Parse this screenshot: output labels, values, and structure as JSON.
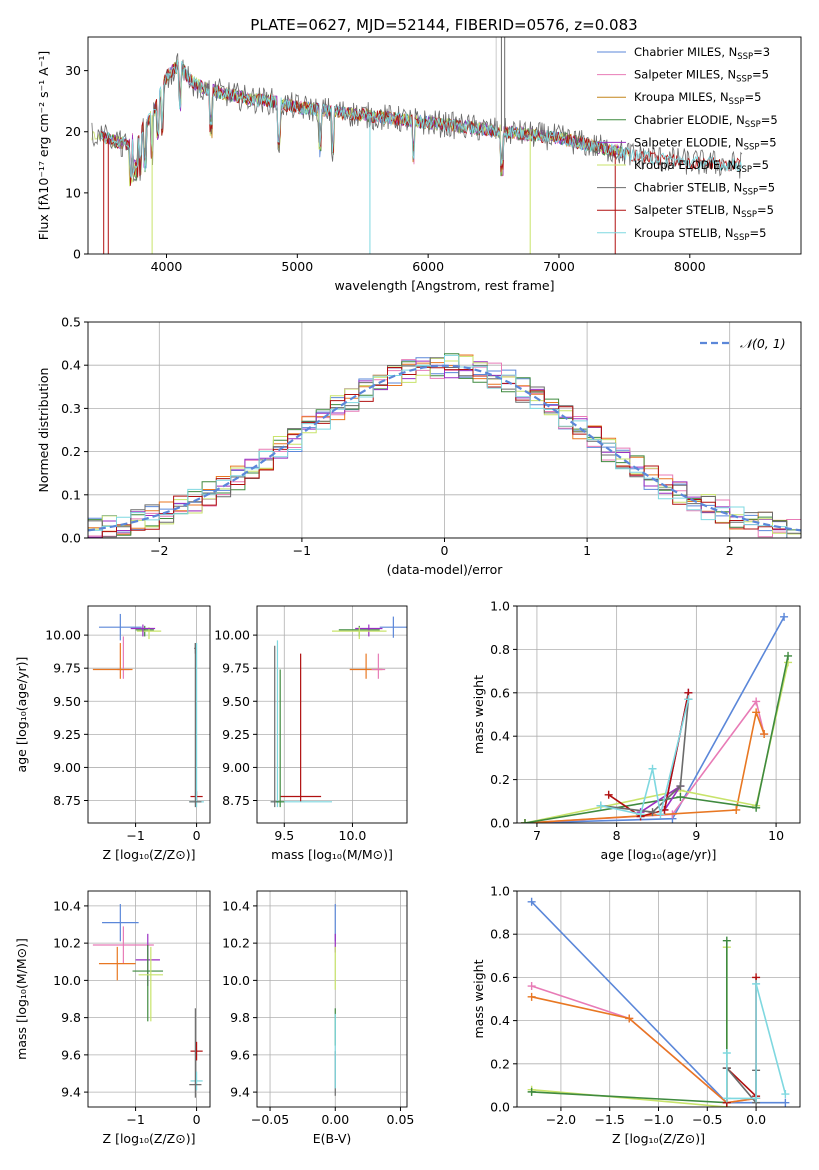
{
  "figure": {
    "title": "PLATE=0627, MJD=52144, FIBERID=0576, z=0.083"
  },
  "colors": {
    "Chabrier MILES": "#5b87d9",
    "Salpeter MILES": "#e87bb6",
    "Kroupa MILES": "#c4851c",
    "Chabrier ELODIE": "#3f8a3f",
    "Salpeter ELODIE": "#9a2fc2",
    "Kroupa ELODIE": "#c8e36a",
    "Chabrier STELIB": "#6b6b6b",
    "Salpeter STELIB": "#b01010",
    "Kroupa STELIB": "#7fd8e0",
    "orange": "#e87722"
  },
  "chart_data": [
    {
      "id": "spectrum",
      "type": "line",
      "xlabel": "wavelength [Angstrom, rest frame]",
      "ylabel": "Flux [fλ10⁻¹⁷ erg cm⁻² s⁻¹ A⁻¹]",
      "xlim": [
        3400,
        8850
      ],
      "ylim": [
        0,
        35.5
      ],
      "xticks": [
        4000,
        5000,
        6000,
        7000,
        8000
      ],
      "yticks": [
        0,
        10,
        20,
        30
      ],
      "legend_position": "top-right",
      "legend": [
        {
          "name": "Chabrier MILES",
          "label": "Chabrier MILES, N",
          "sub": "SSP",
          "suffix": "=3"
        },
        {
          "name": "Salpeter MILES",
          "label": "Salpeter MILES, N",
          "sub": "SSP",
          "suffix": "=5"
        },
        {
          "name": "Kroupa MILES",
          "label": "Kroupa MILES, N",
          "sub": "SSP",
          "suffix": "=5"
        },
        {
          "name": "Chabrier ELODIE",
          "label": "Chabrier ELODIE, N",
          "sub": "SSP",
          "suffix": "=5"
        },
        {
          "name": "Salpeter ELODIE",
          "label": "Salpeter ELODIE, N",
          "sub": "SSP",
          "suffix": "=5"
        },
        {
          "name": "Kroupa ELODIE",
          "label": "Kroupa ELODIE, N",
          "sub": "SSP",
          "suffix": "=5"
        },
        {
          "name": "Chabrier STELIB",
          "label": "Chabrier STELIB, N",
          "sub": "SSP",
          "suffix": "=5"
        },
        {
          "name": "Salpeter STELIB",
          "label": "Salpeter STELIB, N",
          "sub": "SSP",
          "suffix": "=5"
        },
        {
          "name": "Kroupa STELIB",
          "label": "Kroupa STELIB, N",
          "sub": "SSP",
          "suffix": "=5"
        }
      ],
      "continuum": [
        [
          3500,
          19.5
        ],
        [
          3600,
          18.5
        ],
        [
          3700,
          18
        ],
        [
          3800,
          20
        ],
        [
          3900,
          23
        ],
        [
          4000,
          29
        ],
        [
          4100,
          31
        ],
        [
          4200,
          28
        ],
        [
          4300,
          27
        ],
        [
          4400,
          26.5
        ],
        [
          4500,
          26
        ],
        [
          4600,
          25.5
        ],
        [
          4700,
          25.2
        ],
        [
          4800,
          25
        ],
        [
          4900,
          24.5
        ],
        [
          5000,
          24
        ],
        [
          5200,
          23.5
        ],
        [
          5400,
          23
        ],
        [
          5600,
          22.5
        ],
        [
          5800,
          22
        ],
        [
          6000,
          21.5
        ],
        [
          6200,
          21
        ],
        [
          6400,
          20.5
        ],
        [
          6600,
          20
        ],
        [
          6800,
          19.5
        ],
        [
          7000,
          19
        ],
        [
          7200,
          18
        ],
        [
          7400,
          17
        ],
        [
          7600,
          16
        ],
        [
          7800,
          15.5
        ],
        [
          8000,
          15
        ],
        [
          8200,
          14.8
        ],
        [
          8400,
          14.5
        ]
      ]
    },
    {
      "id": "residuals",
      "type": "histogram",
      "xlabel": "(data-model)/error",
      "ylabel": "Normed distribution",
      "xlim": [
        -2.5,
        2.5
      ],
      "ylim": [
        0,
        0.5
      ],
      "xticks": [
        -2,
        -1,
        0,
        1,
        2
      ],
      "yticks": [
        0.0,
        0.1,
        0.2,
        0.3,
        0.4,
        0.5
      ],
      "grid": true,
      "legend_position": "top-right",
      "legend_label": "𝒩(0, 1)",
      "reference_curve": "standard normal pdf",
      "bin_width": 0.1,
      "approx_envelope": "normal pdf with per-bin scatter of about ±0.03"
    },
    {
      "id": "age_vs_Z",
      "type": "scatter",
      "xlabel": "Z [log₁₀(Z/Z⊙)]",
      "ylabel": "age  [log₁₀(age/yr)]",
      "xlim": [
        -1.78,
        0.22
      ],
      "ylim": [
        8.58,
        10.22
      ],
      "xticks": [
        -1,
        0
      ],
      "yticks": [
        8.75,
        9.0,
        9.25,
        9.5,
        9.75,
        10.0
      ],
      "grid": true,
      "points": [
        {
          "series": "Chabrier MILES",
          "x": -1.25,
          "y": 10.06,
          "xerr": [
            0.35,
            0.35
          ],
          "yerr": [
            0.1,
            0.1
          ]
        },
        {
          "series": "Chabrier ELODIE",
          "x": -0.85,
          "y": 10.04,
          "xerr": [
            0.15,
            0.15
          ],
          "yerr": [
            0.05,
            0.03
          ]
        },
        {
          "series": "Kroupa ELODIE",
          "x": -0.78,
          "y": 10.03,
          "xerr": [
            0.2,
            0.2
          ],
          "yerr": [
            0.06,
            0.03
          ]
        },
        {
          "series": "Salpeter ELODIE",
          "x": -0.88,
          "y": 10.05,
          "xerr": [
            0.2,
            0.2
          ],
          "yerr": [
            0.06,
            0.03
          ]
        },
        {
          "series": "Salpeter MILES",
          "x": -1.2,
          "y": 9.74,
          "xerr": [
            0.1,
            0.1
          ],
          "yerr": [
            0.07,
            0.25
          ]
        },
        {
          "series": "orange",
          "x": -1.25,
          "y": 9.74,
          "xerr": [
            0.45,
            0.2
          ],
          "yerr": [
            0.07,
            0.2
          ]
        },
        {
          "series": "Chabrier STELIB",
          "x": -0.02,
          "y": 9.9,
          "xerr": [
            0.02,
            0.02
          ],
          "yerr": [
            0.04,
            0.04
          ]
        },
        {
          "series": "Salpeter STELIB",
          "x": 0.0,
          "y": 8.78,
          "xerr": [
            0.1,
            0.1
          ],
          "yerr": [
            0.04,
            0.04
          ]
        },
        {
          "series": "Kroupa STELIB",
          "x": 0.0,
          "y": 8.74,
          "xerr": [
            0.12,
            0.12
          ],
          "yerr": [
            0.04,
            1.2
          ]
        },
        {
          "series": "Chabrier STELIB",
          "x": -0.02,
          "y": 8.74,
          "xerr": [
            0.1,
            0.1
          ],
          "yerr": [
            0.04,
            1.2
          ]
        }
      ]
    },
    {
      "id": "age_vs_mass",
      "type": "scatter",
      "xlabel": "mass [log₁₀(M/M⊙)]",
      "ylabel": "",
      "xlim": [
        9.3,
        10.4
      ],
      "ylim": [
        8.58,
        10.22
      ],
      "xticks": [
        9.5,
        10.0
      ],
      "yticks": [
        8.75,
        9.0,
        9.25,
        9.5,
        9.75,
        10.0
      ],
      "grid": true,
      "points": [
        {
          "series": "Chabrier MILES",
          "x": 10.3,
          "y": 10.06,
          "xerr": [
            0.1,
            0.1
          ],
          "yerr": [
            0.08,
            0.08
          ]
        },
        {
          "series": "Chabrier ELODIE",
          "x": 10.05,
          "y": 10.04,
          "xerr": [
            0.15,
            0.15
          ],
          "yerr": [
            0.05,
            0.03
          ]
        },
        {
          "series": "Salpeter ELODIE",
          "x": 10.12,
          "y": 10.05,
          "xerr": [
            0.1,
            0.1
          ],
          "yerr": [
            0.06,
            0.03
          ]
        },
        {
          "series": "Kroupa ELODIE",
          "x": 10.05,
          "y": 10.03,
          "xerr": [
            0.2,
            0.2
          ],
          "yerr": [
            0.06,
            0.03
          ]
        },
        {
          "series": "orange",
          "x": 10.1,
          "y": 9.74,
          "xerr": [
            0.12,
            0.12
          ],
          "yerr": [
            0.07,
            0.12
          ]
        },
        {
          "series": "Salpeter MILES",
          "x": 10.19,
          "y": 9.74,
          "xerr": [
            0.05,
            0.05
          ],
          "yerr": [
            0.07,
            0.12
          ]
        },
        {
          "series": "Salpeter STELIB",
          "x": 9.62,
          "y": 8.78,
          "xerr": [
            0.15,
            0.15
          ],
          "yerr": [
            0.04,
            1.08
          ]
        },
        {
          "series": "Kroupa STELIB",
          "x": 9.45,
          "y": 8.74,
          "xerr": [
            0.05,
            0.4
          ],
          "yerr": [
            0.04,
            1.22
          ]
        },
        {
          "series": "Chabrier STELIB",
          "x": 9.43,
          "y": 8.74,
          "xerr": [
            0.03,
            0.03
          ],
          "yerr": [
            0.04,
            1.18
          ]
        },
        {
          "series": "Chabrier ELODIE",
          "x": 9.47,
          "y": 8.74,
          "xerr": [
            0.03,
            0.03
          ],
          "yerr": [
            0.04,
            1.0
          ]
        }
      ]
    },
    {
      "id": "mass_weight_vs_age",
      "type": "line",
      "xlabel": "age  [log₁₀(age/yr)]",
      "ylabel": "mass weight",
      "xlim": [
        6.75,
        10.3
      ],
      "ylim": [
        0,
        1.0
      ],
      "xticks": [
        7,
        8,
        9,
        10
      ],
      "yticks": [
        0.0,
        0.2,
        0.4,
        0.6,
        0.8,
        1.0
      ],
      "grid": true,
      "series": [
        {
          "name": "Chabrier MILES",
          "x": [
            6.85,
            8.7,
            10.1
          ],
          "y": [
            0.0,
            0.02,
            0.95
          ]
        },
        {
          "name": "Salpeter MILES",
          "x": [
            6.85,
            8.7,
            9.75,
            9.85
          ],
          "y": [
            0.0,
            0.04,
            0.56,
            0.41
          ]
        },
        {
          "name": "orange",
          "x": [
            6.85,
            9.5,
            9.75,
            9.85
          ],
          "y": [
            0.0,
            0.06,
            0.51,
            0.41
          ]
        },
        {
          "name": "Kroupa ELODIE",
          "x": [
            6.85,
            8.8,
            9.75,
            10.15
          ],
          "y": [
            0.0,
            0.15,
            0.08,
            0.74
          ]
        },
        {
          "name": "Chabrier ELODIE",
          "x": [
            6.85,
            8.8,
            9.75,
            10.15
          ],
          "y": [
            0.0,
            0.12,
            0.07,
            0.77
          ]
        },
        {
          "name": "Salpeter ELODIE",
          "x": [
            8.3,
            8.8,
            8.6,
            8.9
          ],
          "y": [
            0.05,
            0.17,
            0.06,
            0.6
          ]
        },
        {
          "name": "Salpeter STELIB",
          "x": [
            7.9,
            8.3,
            8.6,
            8.9
          ],
          "y": [
            0.13,
            0.03,
            0.06,
            0.6
          ]
        },
        {
          "name": "Chabrier STELIB",
          "x": [
            7.8,
            8.45,
            8.8,
            8.9
          ],
          "y": [
            0.08,
            0.05,
            0.17,
            0.57
          ]
        },
        {
          "name": "Kroupa STELIB",
          "x": [
            7.8,
            8.3,
            8.45,
            8.55,
            8.9
          ],
          "y": [
            0.08,
            0.04,
            0.25,
            0.04,
            0.57
          ]
        }
      ]
    },
    {
      "id": "mass_vs_Z",
      "type": "scatter",
      "xlabel": "Z [log₁₀(Z/Z⊙)]",
      "ylabel": "mass [log₁₀(M/M⊙)]",
      "xlim": [
        -1.78,
        0.22
      ],
      "ylim": [
        9.32,
        10.48
      ],
      "xticks": [
        -1,
        0
      ],
      "yticks": [
        9.4,
        9.6,
        9.8,
        10.0,
        10.2,
        10.4
      ],
      "grid": true,
      "points": [
        {
          "series": "Chabrier MILES",
          "x": -1.25,
          "y": 10.31,
          "xerr": [
            0.3,
            0.3
          ],
          "yerr": [
            0.1,
            0.1
          ]
        },
        {
          "series": "Salpeter MILES",
          "x": -1.2,
          "y": 10.19,
          "xerr": [
            0.5,
            0.5
          ],
          "yerr": [
            0.1,
            0.1
          ]
        },
        {
          "series": "orange",
          "x": -1.3,
          "y": 10.09,
          "xerr": [
            0.3,
            0.3
          ],
          "yerr": [
            0.09,
            0.09
          ]
        },
        {
          "series": "Salpeter ELODIE",
          "x": -0.8,
          "y": 10.11,
          "xerr": [
            0.2,
            0.2
          ],
          "yerr": [
            0.14,
            0.14
          ]
        },
        {
          "series": "Chabrier ELODIE",
          "x": -0.8,
          "y": 10.05,
          "xerr": [
            0.25,
            0.25
          ],
          "yerr": [
            0.27,
            0.14
          ]
        },
        {
          "series": "Kroupa ELODIE",
          "x": -0.75,
          "y": 10.03,
          "xerr": [
            0.2,
            0.2
          ],
          "yerr": [
            0.25,
            0.15
          ]
        },
        {
          "series": "Salpeter STELIB",
          "x": 0.0,
          "y": 9.62,
          "xerr": [
            0.1,
            0.1
          ],
          "yerr": [
            0.05,
            0.05
          ]
        },
        {
          "series": "Kroupa STELIB",
          "x": 0.0,
          "y": 9.46,
          "xerr": [
            0.1,
            0.1
          ],
          "yerr": [
            0.05,
            0.05
          ]
        },
        {
          "series": "Chabrier STELIB",
          "x": -0.02,
          "y": 9.44,
          "xerr": [
            0.1,
            0.1
          ],
          "yerr": [
            0.07,
            0.41
          ]
        }
      ]
    },
    {
      "id": "mass_vs_ebv",
      "type": "scatter",
      "xlabel": "E(B-V)",
      "ylabel": "",
      "xlim": [
        -0.06,
        0.055
      ],
      "ylim": [
        9.32,
        10.48
      ],
      "xticks": [
        -0.05,
        0.0,
        0.05
      ],
      "yticks": [
        9.4,
        9.6,
        9.8,
        10.0,
        10.2,
        10.4
      ],
      "grid": true,
      "points": [
        {
          "series": "Chabrier MILES",
          "x": 0.0,
          "y": 10.31,
          "xerr": [
            0,
            0
          ],
          "yerr": [
            0.1,
            0.1
          ]
        },
        {
          "series": "Salpeter ELODIE",
          "x": 0.0,
          "y": 10.2,
          "xerr": [
            0,
            0
          ],
          "yerr": [
            0.05,
            0.05
          ]
        },
        {
          "series": "Kroupa ELODIE",
          "x": 0.0,
          "y": 10.03,
          "xerr": [
            0,
            0
          ],
          "yerr": [
            0.08,
            0.15
          ]
        },
        {
          "series": "Chabrier ELODIE",
          "x": 0.0,
          "y": 9.75,
          "xerr": [
            0,
            0
          ],
          "yerr": [
            0.1,
            0.1
          ]
        },
        {
          "series": "Chabrier STELIB",
          "x": 0.0,
          "y": 9.5,
          "xerr": [
            0,
            0
          ],
          "yerr": [
            0.12,
            0.12
          ]
        },
        {
          "series": "Kroupa STELIB",
          "x": 0.0,
          "y": 9.62,
          "xerr": [
            0,
            0
          ],
          "yerr": [
            0.2,
            0.2
          ]
        }
      ]
    },
    {
      "id": "mass_weight_vs_Z",
      "type": "line",
      "xlabel": "Z [log₁₀(Z/Z⊙)]",
      "ylabel": "mass weight",
      "xlim": [
        -2.45,
        0.45
      ],
      "ylim": [
        0,
        1.0
      ],
      "xticks": [
        -2.0,
        -1.5,
        -1.0,
        -0.5,
        0.0
      ],
      "yticks": [
        0.0,
        0.2,
        0.4,
        0.6,
        0.8,
        1.0
      ],
      "grid": true,
      "series": [
        {
          "name": "Chabrier MILES",
          "x": [
            -2.3,
            -0.3,
            0.3
          ],
          "y": [
            0.95,
            0.02,
            0.02
          ]
        },
        {
          "name": "Salpeter MILES",
          "x": [
            -2.3,
            -1.3,
            -0.3,
            0.0
          ],
          "y": [
            0.56,
            0.41,
            0.02,
            0.04
          ]
        },
        {
          "name": "orange",
          "x": [
            -2.3,
            -1.3,
            -0.3,
            0.0
          ],
          "y": [
            0.51,
            0.41,
            0.02,
            0.04
          ]
        },
        {
          "name": "Kroupa ELODIE",
          "x": [
            -2.3,
            -0.3,
            -0.3
          ],
          "y": [
            0.08,
            0.0,
            0.74
          ]
        },
        {
          "name": "Chabrier ELODIE",
          "x": [
            -2.3,
            -0.3,
            -0.3
          ],
          "y": [
            0.07,
            0.02,
            0.77
          ]
        },
        {
          "name": "Salpeter STELIB",
          "x": [
            -0.3,
            -0.3,
            0.0,
            0.0
          ],
          "y": [
            0.02,
            0.18,
            0.05,
            0.6
          ]
        },
        {
          "name": "Chabrier STELIB",
          "x": [
            -0.3,
            0.0,
            0.0
          ],
          "y": [
            0.18,
            0.02,
            0.17
          ]
        },
        {
          "name": "Kroupa STELIB",
          "x": [
            -0.3,
            -0.3,
            0.0,
            0.0,
            0.3
          ],
          "y": [
            0.25,
            0.04,
            0.04,
            0.57,
            0.06
          ]
        }
      ]
    }
  ]
}
